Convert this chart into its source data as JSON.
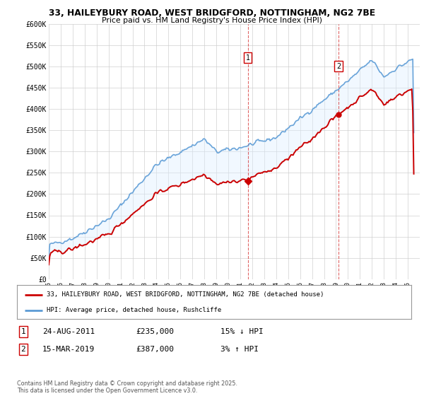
{
  "title_line1": "33, HAILEYBURY ROAD, WEST BRIDGFORD, NOTTINGHAM, NG2 7BE",
  "title_line2": "Price paid vs. HM Land Registry's House Price Index (HPI)",
  "ylabel_ticks": [
    "£0",
    "£50K",
    "£100K",
    "£150K",
    "£200K",
    "£250K",
    "£300K",
    "£350K",
    "£400K",
    "£450K",
    "£500K",
    "£550K",
    "£600K"
  ],
  "ytick_values": [
    0,
    50000,
    100000,
    150000,
    200000,
    250000,
    300000,
    350000,
    400000,
    450000,
    500000,
    550000,
    600000
  ],
  "hpi_color": "#5b9bd5",
  "price_color": "#cc0000",
  "fill_color": "#ddeeff",
  "sale1_date": "24-AUG-2011",
  "sale1_price": 235000,
  "sale1_label": "15% ↓ HPI",
  "sale1_x": 2011.65,
  "sale2_date": "15-MAR-2019",
  "sale2_price": 387000,
  "sale2_label": "3% ↑ HPI",
  "sale2_x": 2019.21,
  "xmin": 1995,
  "xmax": 2026,
  "ymin": 0,
  "ymax": 600000,
  "legend_label1": "33, HAILEYBURY ROAD, WEST BRIDGFORD, NOTTINGHAM, NG2 7BE (detached house)",
  "legend_label2": "HPI: Average price, detached house, Rushcliffe",
  "footnote": "Contains HM Land Registry data © Crown copyright and database right 2025.\nThis data is licensed under the Open Government Licence v3.0.",
  "bg_color": "white",
  "grid_color": "#cccccc"
}
